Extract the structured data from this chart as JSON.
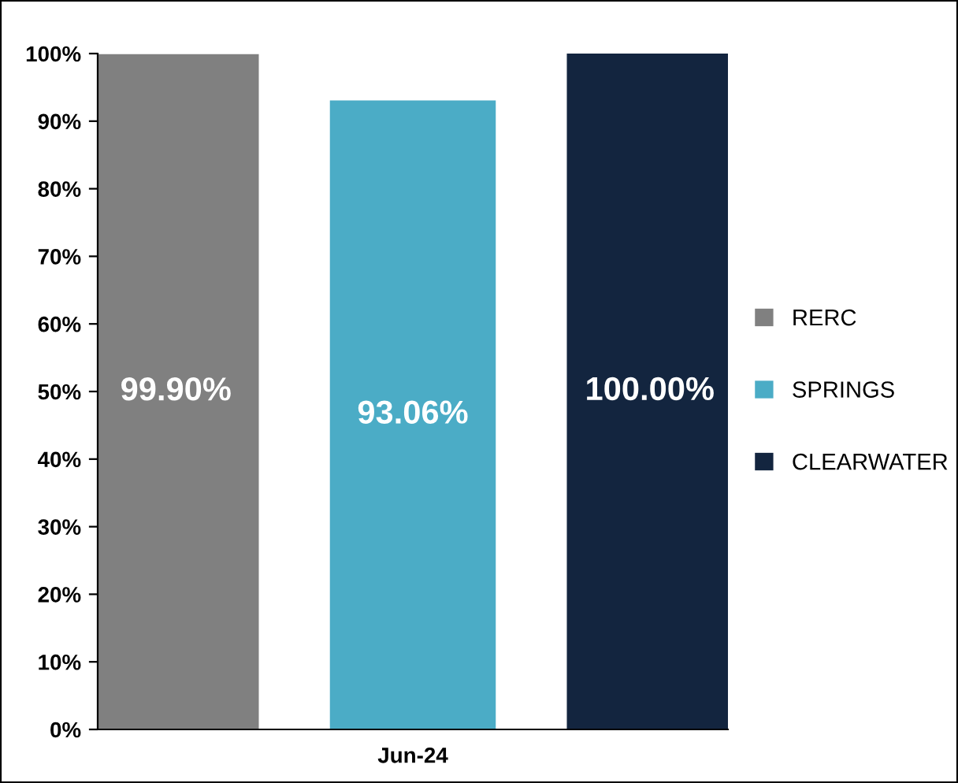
{
  "chart_data": {
    "type": "bar",
    "categories": [
      "Jun-24"
    ],
    "series": [
      {
        "name": "RERC",
        "color": "#808080",
        "values": [
          99.9
        ],
        "value_labels": [
          "99.90%"
        ]
      },
      {
        "name": "SPRINGS",
        "color": "#4bacc6",
        "values": [
          93.06
        ],
        "value_labels": [
          "93.06%"
        ]
      },
      {
        "name": "CLEARWATER",
        "color": "#13253f",
        "values": [
          100
        ],
        "value_labels": [
          "100.00%"
        ]
      }
    ],
    "ylim": [
      0,
      100
    ],
    "yticks": [
      {
        "value": 0,
        "label": "0%"
      },
      {
        "value": 10,
        "label": "10%"
      },
      {
        "value": 20,
        "label": "20%"
      },
      {
        "value": 30,
        "label": "30%"
      },
      {
        "value": 40,
        "label": "40%"
      },
      {
        "value": 50,
        "label": "50%"
      },
      {
        "value": 60,
        "label": "60%"
      },
      {
        "value": 70,
        "label": "70%"
      },
      {
        "value": 80,
        "label": "80%"
      },
      {
        "value": 90,
        "label": "90%"
      },
      {
        "value": 100,
        "label": "100%"
      }
    ],
    "grid": false,
    "legend": "right"
  }
}
